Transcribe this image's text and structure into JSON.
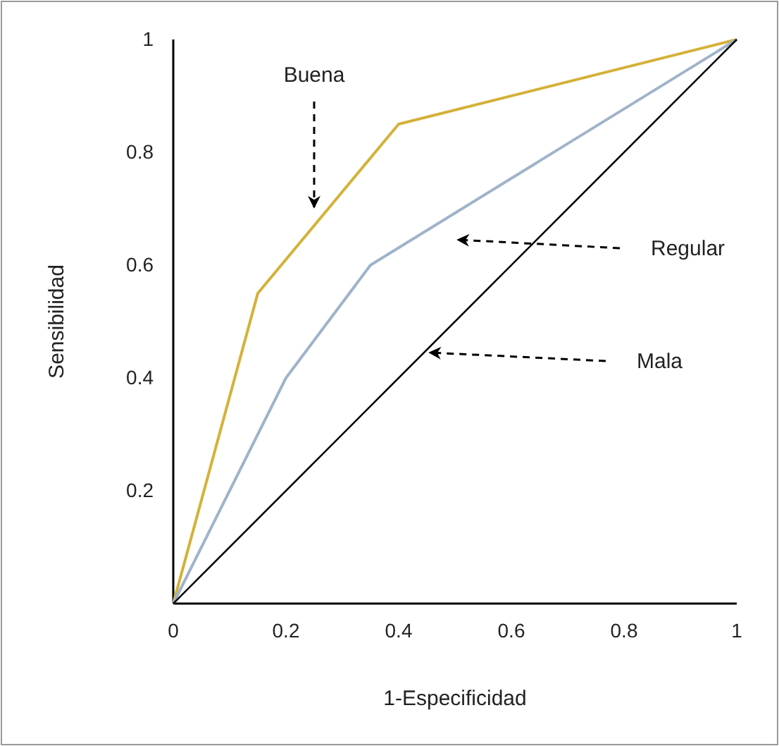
{
  "chart_data": {
    "type": "line",
    "xlabel": "1-Especificidad",
    "ylabel": "Sensibilidad",
    "xlim": [
      0,
      1
    ],
    "ylim": [
      0,
      1
    ],
    "xticks": [
      0,
      0.2,
      0.4,
      0.6,
      0.8,
      1
    ],
    "yticks": [
      0.2,
      0.4,
      0.6,
      0.8,
      1
    ],
    "grid": false,
    "marker": "none",
    "line_style": "solid",
    "series": [
      {
        "color": "#d4b13a",
        "x": [
          0,
          0.15,
          0.4,
          1
        ],
        "values": [
          0,
          0.55,
          0.85,
          1
        ]
      },
      {
        "color": "#9fb3ca",
        "x": [
          0,
          0.2,
          0.35,
          1
        ],
        "values": [
          0,
          0.4,
          0.6,
          1
        ]
      },
      {
        "color": "#000000",
        "x": [
          0,
          1
        ],
        "values": [
          0,
          1
        ]
      }
    ],
    "annotations": [
      "Buena",
      "Regular",
      "Mala"
    ]
  }
}
